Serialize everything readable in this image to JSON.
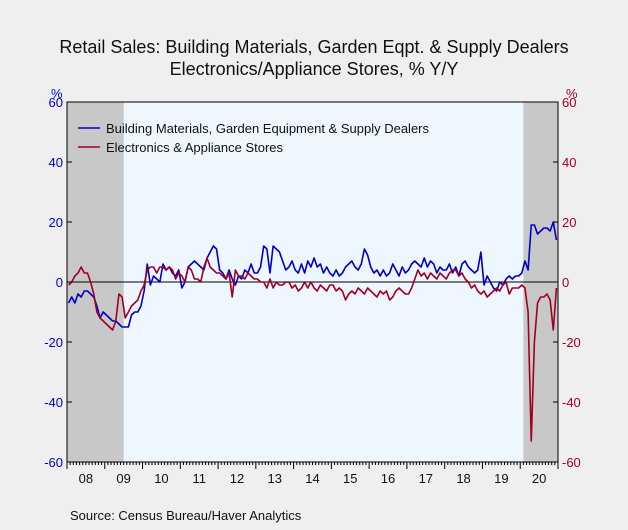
{
  "title": {
    "line1": "Retail Sales: Building Materials, Garden Eqpt. & Supply Dealers",
    "line2": "Electronics/Appliance Stores, % Y/Y"
  },
  "units": {
    "left": "%",
    "right": "%"
  },
  "source": "Source:  Census Bureau/Haver Analytics",
  "colors": {
    "building": "#0000cc",
    "electronics": "#a00020",
    "recession": "#c8c8c8",
    "plot_bg": "#eef6ff",
    "zero_line": "#000000"
  },
  "chart_data": {
    "type": "line",
    "x_start": "2008-01",
    "frequency": "monthly",
    "xlim": [
      "2008-01",
      "2020-12"
    ],
    "ylim": [
      -60,
      60
    ],
    "y_ticks": [
      60,
      40,
      20,
      0,
      -20,
      -40,
      -60
    ],
    "x_tick_labels": [
      "08",
      "09",
      "10",
      "11",
      "12",
      "13",
      "14",
      "15",
      "16",
      "17",
      "18",
      "19",
      "20"
    ],
    "recessions": [
      {
        "start": "2008-01",
        "end": "2009-06"
      },
      {
        "start": "2020-02",
        "end": "2020-12"
      }
    ],
    "series": [
      {
        "name": "Building Materials, Garden Equipment & Supply Dealers",
        "axis": "left",
        "values": [
          -7,
          -5,
          -7,
          -4,
          -5,
          -3,
          -3,
          -4,
          -5,
          -8,
          -12,
          -10,
          -11,
          -12,
          -13,
          -13,
          -14,
          -15,
          -15,
          -15,
          -11,
          -10,
          -10,
          -8,
          -3,
          6,
          -1,
          2,
          1,
          0,
          6,
          4,
          5,
          3,
          2,
          4,
          -2,
          0,
          5,
          6,
          7,
          6,
          5,
          4,
          8,
          10,
          12,
          11,
          4,
          3,
          1,
          4,
          1,
          -1,
          2,
          1,
          4,
          3,
          6,
          3,
          3,
          5,
          12,
          11,
          3,
          12,
          11,
          10,
          7,
          4,
          5,
          7,
          4,
          3,
          6,
          3,
          7,
          5,
          8,
          5,
          6,
          3,
          5,
          3,
          2,
          4,
          2,
          3,
          5,
          6,
          7,
          5,
          4,
          6,
          11,
          9,
          5,
          3,
          4,
          2,
          4,
          2,
          3,
          6,
          4,
          2,
          5,
          3,
          4,
          6,
          7,
          6,
          5,
          8,
          5,
          7,
          6,
          3,
          5,
          4,
          4,
          6,
          3,
          5,
          2,
          6,
          7,
          5,
          4,
          3,
          4,
          10,
          -1,
          2,
          0,
          -2,
          -3,
          0,
          -1,
          1,
          2,
          1,
          2,
          2,
          3,
          7,
          4,
          19,
          19,
          16,
          17,
          18,
          18,
          17,
          20,
          14
        ]
      },
      {
        "name": "Electronics & Appliance Stores",
        "axis": "right",
        "values": [
          -1,
          0,
          2,
          3,
          5,
          3,
          3,
          0,
          -4,
          -10,
          -12,
          -13,
          -14,
          -15,
          -16,
          -13,
          -4,
          -5,
          -12,
          -10,
          -8,
          -7,
          -6,
          -3,
          -1,
          4,
          5,
          5,
          3,
          5,
          5,
          4,
          5,
          4,
          1,
          3,
          2,
          0,
          5,
          4,
          1,
          1,
          0,
          5,
          8,
          5,
          4,
          3,
          3,
          2,
          1,
          3,
          -5,
          4,
          2,
          2,
          1,
          3,
          2,
          1,
          1,
          0,
          0,
          -2,
          1,
          -2,
          0,
          -1,
          -1,
          0,
          0,
          -2,
          -1,
          -3,
          -2,
          0,
          -2,
          0,
          -2,
          -3,
          -1,
          -2,
          -3,
          -1,
          -1,
          -3,
          -2,
          -3,
          -6,
          -4,
          -3,
          -4,
          -2,
          -3,
          -4,
          -2,
          -3,
          -4,
          -5,
          -3,
          -4,
          -3,
          -6,
          -5,
          -3,
          -2,
          -3,
          -4,
          -4,
          -2,
          1,
          4,
          2,
          3,
          1,
          3,
          2,
          1,
          3,
          2,
          1,
          3,
          4,
          4,
          2,
          3,
          1,
          0,
          -2,
          -1,
          -3,
          -4,
          -3,
          -5,
          -4,
          -3,
          -2,
          -3,
          -1,
          0,
          -4,
          -2,
          -2,
          -2,
          -1,
          -2,
          -10,
          -53,
          -20,
          -7,
          -5,
          -5,
          -4,
          -6,
          -16,
          -2
        ]
      }
    ]
  }
}
